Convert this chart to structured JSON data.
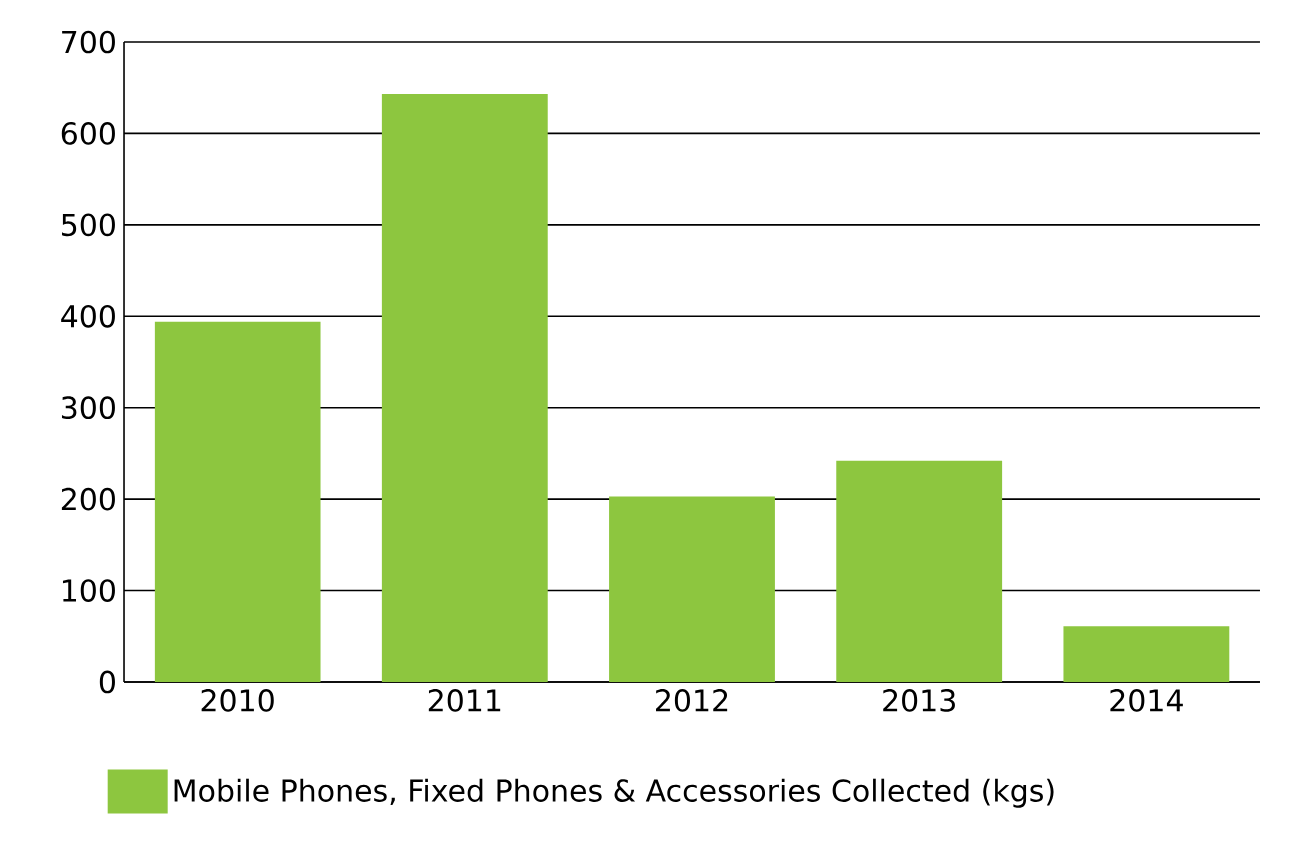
{
  "chart_data": {
    "type": "bar",
    "categories": [
      "2010",
      "2011",
      "2012",
      "2013",
      "2014"
    ],
    "series": [
      {
        "name": "Mobile Phones, Fixed Phones & Accessories Collected (kgs)",
        "color": "#8dc63f",
        "values": [
          394,
          643,
          203,
          242,
          61
        ]
      }
    ],
    "ylim": [
      0,
      700
    ],
    "yticks": [
      0,
      100,
      200,
      300,
      400,
      500,
      600,
      700
    ],
    "grid": "y",
    "legend": "bottom"
  }
}
